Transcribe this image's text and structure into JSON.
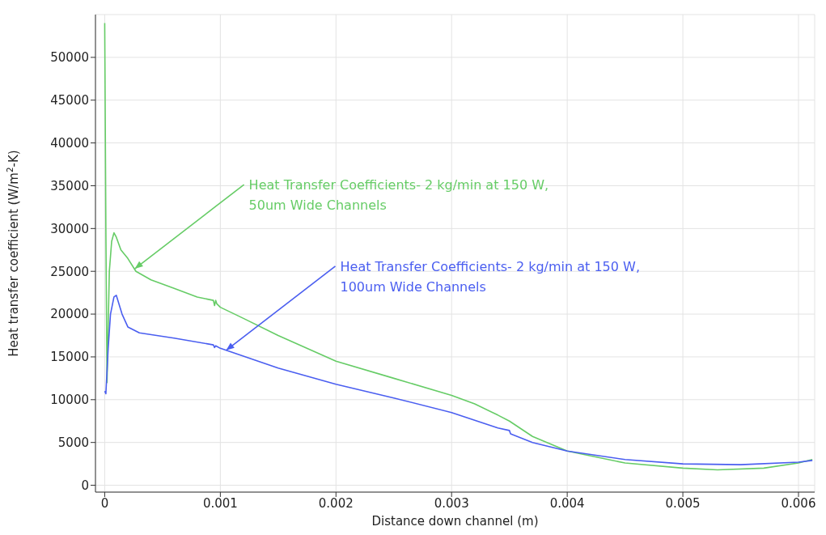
{
  "chart_data": {
    "type": "line",
    "xlabel": "Distance down channel (m)",
    "ylabel": "Heat transfer coefficient (W/m$^{2}$-K)",
    "xlim": [
      -8e-05,
      0.00614
    ],
    "ylim": [
      -800,
      55000
    ],
    "xticks": [
      0,
      0.001,
      0.002,
      0.003,
      0.004,
      0.005,
      0.006
    ],
    "yticks": [
      0,
      5000,
      10000,
      15000,
      20000,
      25000,
      30000,
      35000,
      40000,
      45000,
      50000
    ],
    "grid": true,
    "marker": "none",
    "line_style": "solid",
    "series": [
      {
        "color": "#66cc66",
        "x": [
          0,
          1e-05,
          2e-05,
          4e-05,
          6e-05,
          8e-05,
          0.0001,
          0.00014,
          0.0002,
          0.00027,
          0.0004,
          0.0006,
          0.0008,
          0.00094,
          0.00095,
          0.00096,
          0.00097,
          0.001,
          0.0012,
          0.0015,
          0.002,
          0.0025,
          0.003,
          0.0032,
          0.0034,
          0.0035,
          0.0037,
          0.004,
          0.0045,
          0.005,
          0.0053,
          0.0057,
          0.006,
          0.00612
        ],
        "values": [
          54000,
          30000,
          12000,
          25000,
          28500,
          29500,
          29000,
          27500,
          26500,
          25000,
          24000,
          23000,
          22000,
          21600,
          21000,
          21600,
          21200,
          20800,
          19500,
          17500,
          14500,
          12500,
          10500,
          9500,
          8200,
          7500,
          5700,
          4000,
          2600,
          2000,
          1800,
          2000,
          2600,
          3000
        ]
      },
      {
        "color": "#4a5ef0",
        "x": [
          0,
          1e-05,
          3e-05,
          5e-05,
          8e-05,
          0.0001,
          0.00015,
          0.0002,
          0.0003,
          0.0006,
          0.00094,
          0.00095,
          0.00096,
          0.001,
          0.0015,
          0.002,
          0.0025,
          0.003,
          0.0034,
          0.0035,
          0.00351,
          0.0037,
          0.004,
          0.0045,
          0.005,
          0.0055,
          0.006,
          0.00612
        ],
        "values": [
          11000,
          10700,
          16000,
          20000,
          22000,
          22200,
          20000,
          18500,
          17800,
          17200,
          16400,
          16100,
          16300,
          16000,
          13700,
          11800,
          10200,
          8500,
          6700,
          6400,
          6000,
          5000,
          4000,
          3000,
          2500,
          2400,
          2700,
          2900
        ]
      }
    ],
    "annotations": [
      {
        "text": "Heat Transfer Coefficients- 2 kg/min at 150 W,\n50um Wide Channels",
        "x": 0.00026,
        "y": 25300
      },
      {
        "text": "Heat Transfer Coefficients- 2 kg/min at 150 W,\n100um Wide Channels",
        "x": 0.00105,
        "y": 15770
      }
    ]
  }
}
